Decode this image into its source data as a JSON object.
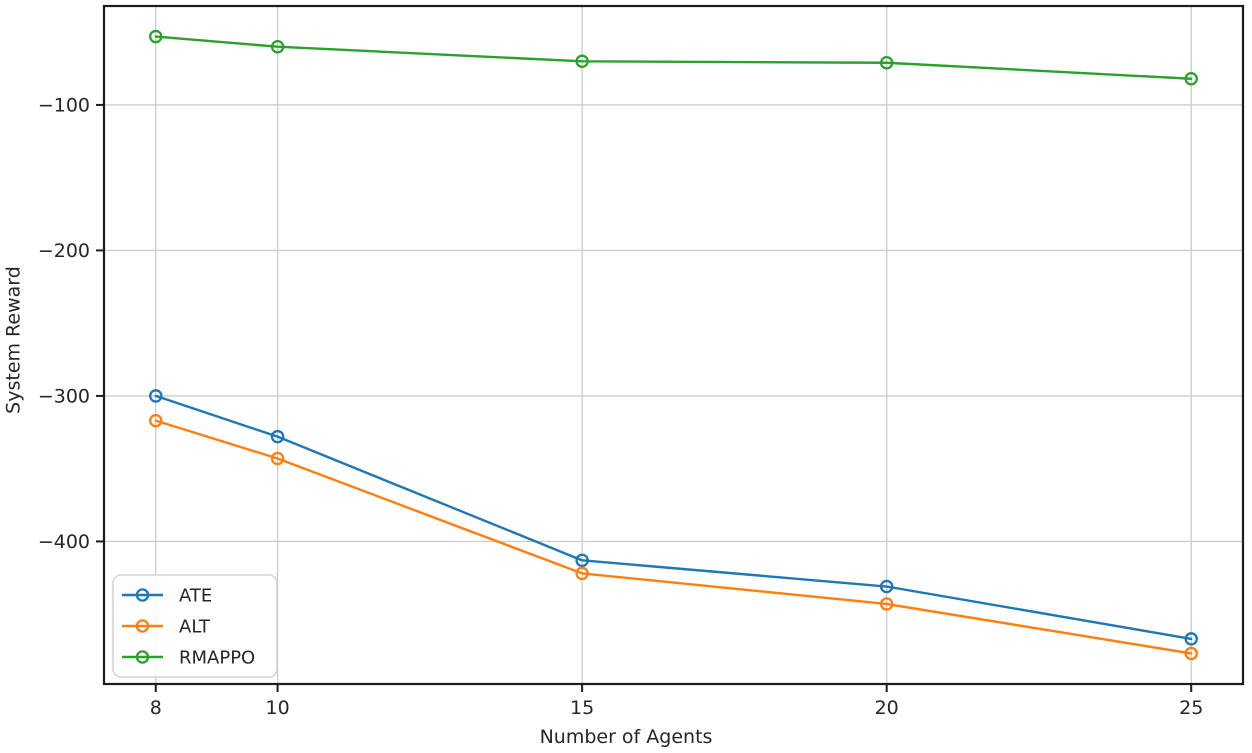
{
  "figure": {
    "kind": "line-chart-figure"
  },
  "chart_data": {
    "type": "line",
    "title": "",
    "xlabel": "Number of Agents",
    "ylabel": "System Reward",
    "x": [
      8,
      10,
      15,
      20,
      25
    ],
    "series": [
      {
        "name": "ATE",
        "color": "#1f77b4",
        "values": [
          -300,
          -328,
          -413,
          -431,
          -467
        ]
      },
      {
        "name": "ALT",
        "color": "#ff7f0e",
        "values": [
          -317,
          -343,
          -422,
          -443,
          -477
        ]
      },
      {
        "name": "RMAPPO",
        "color": "#2ca02c",
        "values": [
          -53,
          -60,
          -70,
          -71,
          -82
        ]
      }
    ],
    "x_tick_labels": [
      "8",
      "10",
      "15",
      "20",
      "25"
    ],
    "y_ticks": [
      -100,
      -200,
      -300,
      -400
    ],
    "y_tick_labels": [
      "−100",
      "−200",
      "−300",
      "−400"
    ],
    "xlim": [
      7.15,
      25.85
    ],
    "ylim": [
      -498,
      -32
    ],
    "grid": true,
    "legend_position": "lower-left",
    "marker": "open-circle"
  },
  "colors": {
    "grid": "#cccccc",
    "spine": "#1c1c1c",
    "tick_text": "#262626",
    "legend_border": "#d4d4d4",
    "legend_bg": "#ffffff",
    "background": "#ffffff"
  }
}
